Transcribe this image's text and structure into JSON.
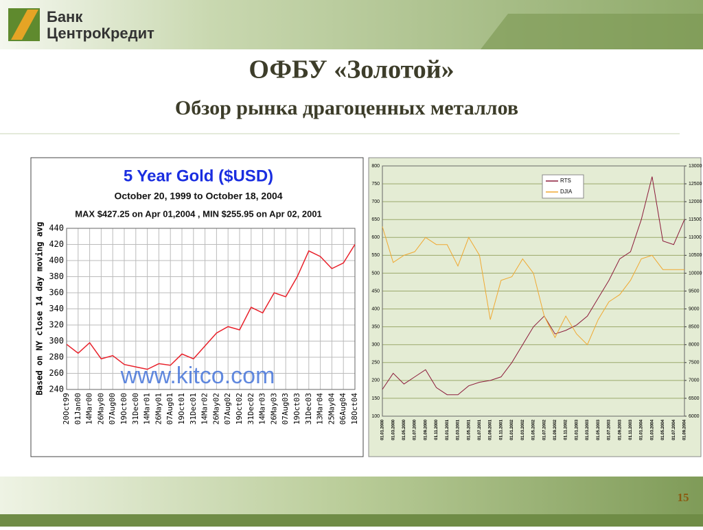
{
  "header": {
    "logo_line1": "Банк",
    "logo_line2": "ЦентроКредит",
    "title": "ОФБУ «Золотой»",
    "subtitle": "Обзор рынка драгоценных металлов"
  },
  "footer": {
    "page_number": "15"
  },
  "chart_data": [
    {
      "type": "line",
      "title": "5 Year Gold ($USD)",
      "subtitle": "October 20, 1999 to October 18, 2004",
      "annotation": "MAX $427.25 on Apr 01,2004 , MIN $255.95 on Apr 02, 2001",
      "watermark": "www.kitco.com",
      "y_label": "Based on NY close 14 day moving avg",
      "grid": true,
      "categories": [
        "20Oct99",
        "01Jan00",
        "14Mar00",
        "26May00",
        "07Aug00",
        "19Oct00",
        "31Dec00",
        "14Mar01",
        "26May01",
        "07Aug01",
        "19Oct01",
        "31Dec01",
        "14Mar02",
        "26May02",
        "07Aug02",
        "19Oct02",
        "31Dec02",
        "14Mar03",
        "26May03",
        "07Aug03",
        "19Oct03",
        "31Dec03",
        "13Mar04",
        "25May04",
        "06Aug04",
        "18Oct04"
      ],
      "series": [
        {
          "name": "Gold",
          "color": "#e8202a",
          "values": [
            296,
            285,
            298,
            278,
            282,
            271,
            268,
            265,
            272,
            270,
            284,
            278,
            294,
            310,
            318,
            314,
            342,
            335,
            360,
            355,
            380,
            412,
            405,
            390,
            397,
            420
          ]
        }
      ],
      "ylim": [
        240,
        440
      ],
      "yticks": [
        240,
        260,
        280,
        300,
        320,
        340,
        360,
        380,
        400,
        420,
        440
      ]
    },
    {
      "type": "line",
      "grid": true,
      "categories": [
        "01.01.2000",
        "01.03.2000",
        "01.05.2000",
        "01.07.2000",
        "01.09.2000",
        "01.11.2000",
        "01.01.2001",
        "01.03.2001",
        "01.05.2001",
        "01.07.2001",
        "01.09.2001",
        "01.11.2001",
        "01.01.2002",
        "01.03.2002",
        "01.05.2002",
        "01.07.2002",
        "01.09.2002",
        "01.11.2002",
        "01.01.2003",
        "01.03.2003",
        "01.05.2003",
        "01.07.2003",
        "01.09.2003",
        "01.11.2003",
        "01.01.2004",
        "01.03.2004",
        "01.05.2004",
        "01.07.2004",
        "01.09.2004"
      ],
      "series": [
        {
          "name": "RTS",
          "color": "#8b1a3a",
          "values": [
            175,
            220,
            190,
            210,
            230,
            180,
            160,
            160,
            185,
            195,
            200,
            210,
            250,
            300,
            350,
            380,
            330,
            340,
            355,
            380,
            430,
            480,
            540,
            560,
            650,
            770,
            590,
            580,
            650
          ]
        },
        {
          "name": "DJIA",
          "color": "#f0a830",
          "axis": "y2",
          "values": [
            11300,
            10300,
            10500,
            10600,
            11000,
            10800,
            10800,
            10200,
            11000,
            10500,
            8700,
            9800,
            9900,
            10400,
            10000,
            8800,
            8200,
            8800,
            8300,
            8000,
            8700,
            9200,
            9400,
            9800,
            10400,
            10500,
            10100,
            10100,
            10100
          ]
        }
      ],
      "ylim": [
        100,
        800
      ],
      "yticks": [
        100,
        150,
        200,
        250,
        300,
        350,
        400,
        450,
        500,
        550,
        600,
        650,
        700,
        750,
        800
      ],
      "y2lim": [
        6000,
        13000
      ],
      "y2ticks": [
        6000,
        6500,
        7000,
        7500,
        8000,
        8500,
        9000,
        9500,
        10000,
        10500,
        11000,
        11500,
        12000,
        12500,
        13000
      ]
    }
  ]
}
